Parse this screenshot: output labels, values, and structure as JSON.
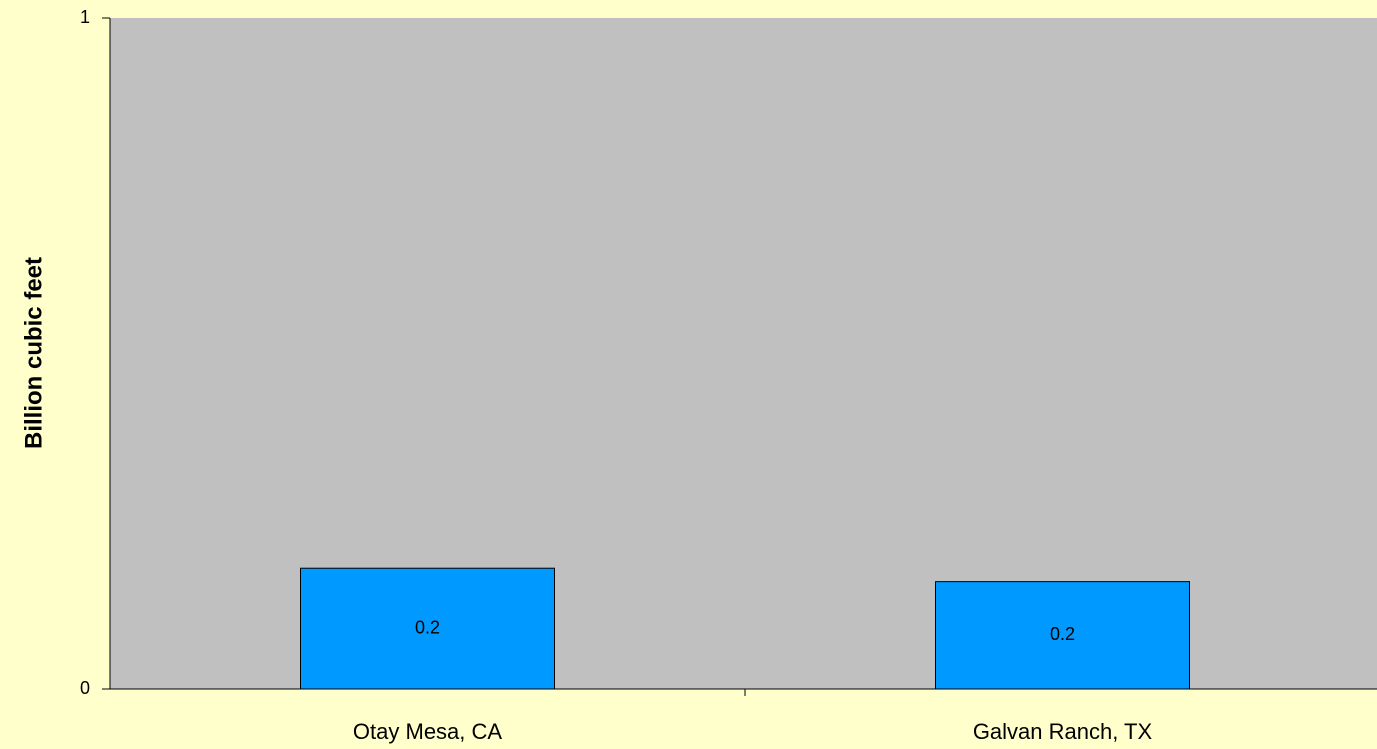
{
  "chart_data": {
    "type": "bar",
    "y_label": "Billion cubic feet",
    "categories": [
      "Otay Mesa, CA",
      "Galvan Ranch, TX"
    ],
    "values": [
      0.18,
      0.16
    ],
    "value_labels": [
      "0.2",
      "0.2"
    ],
    "color": "#0099ff",
    "ylim": [
      0,
      1
    ],
    "yticks": [
      0,
      1
    ],
    "grid": false
  }
}
